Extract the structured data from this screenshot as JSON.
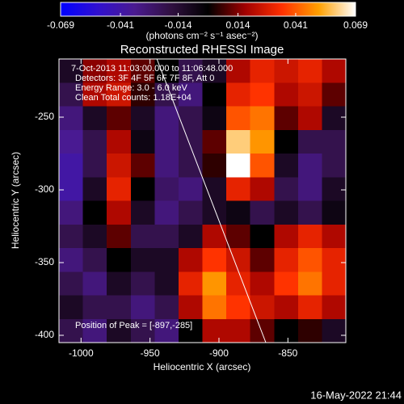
{
  "chart_data": {
    "type": "heatmap",
    "title": "Reconstructed RHESSI Image",
    "xlabel": "Heliocentric X (arcsec)",
    "ylabel": "Heliocentric Y (arcsec)",
    "colorbar_label": "(photons cm⁻² s⁻¹ asec⁻²)",
    "annotations": [
      "7-Oct-2013 11:03:00.000 to 11:06:48.000",
      "Detectors: 3F 4F 5F 6F 7F 8F, Att 0",
      "Energy Range: 3.0 - 6.0 keV",
      "Clean     Total counts: 1.18E+04",
      "Position of Peak = [-897,-285]"
    ],
    "footer": "16-May-2022 21:44",
    "xlim": [
      -1016,
      -808
    ],
    "xticks": [
      -1000,
      -950,
      -900,
      -850
    ],
    "ylim": [
      -405,
      -210
    ],
    "yticks": [
      -250,
      -300,
      -350,
      -400
    ],
    "clim": [
      -0.069,
      0.069
    ],
    "cticks": [
      -0.069,
      -0.041,
      -0.014,
      0.014,
      0.041,
      0.069
    ],
    "colormap": [
      "#0000ff",
      "#3010d0",
      "#4a1a90",
      "#301040",
      "#000000",
      "#a00000",
      "#ff3000",
      "#ffa000",
      "#ffffff"
    ],
    "limb": {
      "color": "#ffffff",
      "x": [
        -945,
        -866
      ],
      "y": [
        -210,
        -405
      ]
    },
    "image": {
      "values": [
        [
          -0.01,
          0.015,
          0.02,
          0.01,
          0,
          -0.02,
          -0.01,
          0.02,
          0.03,
          0.025,
          0.03,
          0.02
        ],
        [
          -0.02,
          0.02,
          0.025,
          0.005,
          -0.02,
          -0.03,
          0,
          0.03,
          0.035,
          0.02,
          0.025,
          0.01
        ],
        [
          -0.03,
          -0.01,
          0.01,
          -0.01,
          -0.03,
          -0.02,
          -0.005,
          0.04,
          0.045,
          0.01,
          0.02,
          -0.01
        ],
        [
          -0.035,
          -0.02,
          0.02,
          -0.005,
          -0.03,
          -0.02,
          0.01,
          0.06,
          0.05,
          0,
          -0.02,
          -0.02
        ],
        [
          -0.04,
          -0.02,
          0.025,
          0.01,
          -0.03,
          -0.02,
          0.005,
          0.069,
          0.04,
          -0.01,
          -0.03,
          -0.02
        ],
        [
          -0.04,
          -0.01,
          0.03,
          0,
          -0.025,
          -0.03,
          -0.01,
          0.03,
          0.02,
          -0.02,
          -0.03,
          -0.01
        ],
        [
          -0.03,
          0,
          0.02,
          -0.01,
          -0.03,
          -0.02,
          -0.01,
          -0.005,
          -0.02,
          -0.01,
          -0.02,
          -0.005
        ],
        [
          -0.02,
          -0.01,
          0.01,
          -0.02,
          -0.02,
          -0.01,
          0.02,
          0.01,
          0,
          0.02,
          0.03,
          0.02
        ],
        [
          -0.03,
          -0.02,
          0,
          -0.01,
          -0.01,
          0.02,
          0.035,
          0.025,
          0.01,
          0.03,
          0.04,
          0.03
        ],
        [
          -0.02,
          -0.03,
          -0.01,
          -0.02,
          -0.01,
          0.03,
          0.05,
          0.03,
          0.02,
          0.035,
          0.045,
          0.03
        ],
        [
          -0.01,
          -0.02,
          -0.02,
          -0.03,
          -0.02,
          0.02,
          0.045,
          0.035,
          0.025,
          0.02,
          0.03,
          0.02
        ],
        [
          -0.02,
          -0.03,
          -0.01,
          -0.02,
          -0.03,
          0,
          0.02,
          0.02,
          0.01,
          0,
          0.005,
          -0.01
        ]
      ]
    }
  }
}
